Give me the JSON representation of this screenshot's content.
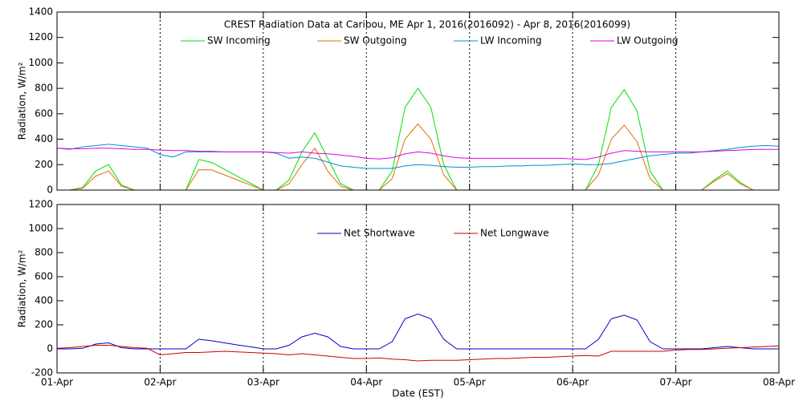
{
  "chart_data": [
    {
      "type": "line",
      "title": "CREST Radiation Data at Caribou, ME   Apr  1, 2016(2016092) - Apr  8, 2016(2016099)",
      "ylabel": "Radiation, W/m²",
      "x": [
        0,
        0.125,
        0.25,
        0.375,
        0.5,
        0.625,
        0.75,
        0.875,
        1,
        1.125,
        1.25,
        1.375,
        1.5,
        1.625,
        1.75,
        1.875,
        2,
        2.125,
        2.25,
        2.375,
        2.5,
        2.625,
        2.75,
        2.875,
        3,
        3.125,
        3.25,
        3.375,
        3.5,
        3.625,
        3.75,
        3.875,
        4,
        4.125,
        4.25,
        4.375,
        4.5,
        4.625,
        4.75,
        4.875,
        5,
        5.125,
        5.25,
        5.375,
        5.5,
        5.625,
        5.75,
        5.875,
        6,
        6.125,
        6.25,
        6.375,
        6.5,
        6.625,
        6.75,
        6.875,
        7
      ],
      "xlim": [
        0,
        7
      ],
      "xticks": [
        0,
        1,
        2,
        3,
        4,
        5,
        6,
        7
      ],
      "x_tick_labels": false,
      "ylim": [
        0,
        1400
      ],
      "yticks": [
        0,
        200,
        400,
        600,
        800,
        1000,
        1200,
        1400
      ],
      "grid": "x",
      "legend": "top",
      "series": [
        {
          "name": "SW Incoming",
          "color": "#00e000",
          "values": [
            0,
            0,
            20,
            150,
            200,
            40,
            0,
            0,
            0,
            0,
            0,
            240,
            217,
            163,
            108,
            54,
            0,
            0,
            80,
            300,
            450,
            250,
            50,
            0,
            0,
            0,
            150,
            650,
            800,
            650,
            200,
            0,
            0,
            0,
            0,
            0,
            0,
            0,
            0,
            0,
            0,
            0,
            200,
            650,
            790,
            620,
            150,
            0,
            0,
            0,
            0,
            80,
            150,
            60,
            0,
            0,
            0
          ]
        },
        {
          "name": "SW Outgoing",
          "color": "#e07000",
          "values": [
            0,
            0,
            15,
            110,
            150,
            30,
            0,
            0,
            0,
            0,
            0,
            160,
            158,
            119,
            79,
            40,
            0,
            0,
            50,
            200,
            330,
            150,
            30,
            0,
            0,
            0,
            90,
            400,
            520,
            400,
            120,
            0,
            0,
            0,
            0,
            0,
            0,
            0,
            0,
            0,
            0,
            0,
            120,
            400,
            510,
            380,
            90,
            0,
            0,
            0,
            0,
            70,
            130,
            50,
            0,
            0,
            0
          ]
        },
        {
          "name": "LW Incoming",
          "color": "#0090d0",
          "values": [
            330,
            320,
            340,
            350,
            360,
            350,
            340,
            330,
            280,
            260,
            300,
            300,
            300,
            300,
            300,
            300,
            300,
            290,
            250,
            260,
            250,
            220,
            190,
            180,
            170,
            170,
            170,
            190,
            200,
            195,
            185,
            180,
            180,
            185,
            185,
            190,
            190,
            195,
            195,
            200,
            205,
            200,
            200,
            210,
            230,
            250,
            270,
            280,
            290,
            290,
            300,
            310,
            320,
            335,
            345,
            350,
            345
          ]
        },
        {
          "name": "LW Outgoing",
          "color": "#e000e0",
          "values": [
            330,
            325,
            325,
            330,
            330,
            325,
            320,
            320,
            315,
            310,
            310,
            305,
            305,
            300,
            300,
            300,
            300,
            295,
            290,
            300,
            290,
            285,
            275,
            265,
            250,
            245,
            255,
            285,
            300,
            290,
            270,
            255,
            250,
            250,
            250,
            250,
            250,
            250,
            250,
            250,
            245,
            240,
            260,
            290,
            310,
            305,
            300,
            300,
            300,
            300,
            300,
            305,
            310,
            315,
            320,
            320,
            320
          ]
        }
      ]
    },
    {
      "type": "line",
      "ylabel": "Radiation, W/m²",
      "xlabel": "Date (EST)",
      "x": [
        0,
        0.125,
        0.25,
        0.375,
        0.5,
        0.625,
        0.75,
        0.875,
        1,
        1.125,
        1.25,
        1.375,
        1.5,
        1.625,
        1.75,
        1.875,
        2,
        2.125,
        2.25,
        2.375,
        2.5,
        2.625,
        2.75,
        2.875,
        3,
        3.125,
        3.25,
        3.375,
        3.5,
        3.625,
        3.75,
        3.875,
        4,
        4.125,
        4.25,
        4.375,
        4.5,
        4.625,
        4.75,
        4.875,
        5,
        5.125,
        5.25,
        5.375,
        5.5,
        5.625,
        5.75,
        5.875,
        6,
        6.125,
        6.25,
        6.375,
        6.5,
        6.625,
        6.75,
        6.875,
        7
      ],
      "xlim": [
        0,
        7
      ],
      "xticks": [
        {
          "value": 0,
          "label": "01-Apr"
        },
        {
          "value": 1,
          "label": "02-Apr"
        },
        {
          "value": 2,
          "label": "03-Apr"
        },
        {
          "value": 3,
          "label": "04-Apr"
        },
        {
          "value": 4,
          "label": "05-Apr"
        },
        {
          "value": 5,
          "label": "06-Apr"
        },
        {
          "value": 6,
          "label": "07-Apr"
        },
        {
          "value": 7,
          "label": "08-Apr"
        }
      ],
      "ylim": [
        -200,
        1200
      ],
      "yticks": [
        -200,
        0,
        200,
        400,
        600,
        800,
        1000,
        1200
      ],
      "grid": "x",
      "legend": "top",
      "series": [
        {
          "name": "Net Shortwave",
          "color": "#0000c8",
          "values": [
            0,
            0,
            5,
            40,
            50,
            10,
            0,
            0,
            0,
            0,
            0,
            80,
            67,
            50,
            33,
            17,
            0,
            0,
            30,
            100,
            130,
            100,
            20,
            0,
            0,
            0,
            60,
            250,
            290,
            250,
            80,
            0,
            0,
            0,
            0,
            0,
            0,
            0,
            0,
            0,
            0,
            0,
            80,
            250,
            280,
            240,
            60,
            0,
            0,
            0,
            0,
            10,
            20,
            10,
            0,
            0,
            0
          ]
        },
        {
          "name": "Net Longwave",
          "color": "#d00000",
          "values": [
            5,
            10,
            20,
            30,
            30,
            20,
            10,
            5,
            -50,
            -40,
            -30,
            -30,
            -25,
            -20,
            -25,
            -30,
            -35,
            -40,
            -50,
            -40,
            -50,
            -60,
            -70,
            -80,
            -80,
            -75,
            -85,
            -90,
            -100,
            -95,
            -95,
            -95,
            -90,
            -85,
            -80,
            -80,
            -75,
            -70,
            -70,
            -65,
            -60,
            -55,
            -60,
            -20,
            -20,
            -20,
            -20,
            -20,
            -10,
            -5,
            -5,
            0,
            5,
            10,
            15,
            20,
            25
          ]
        }
      ]
    }
  ]
}
